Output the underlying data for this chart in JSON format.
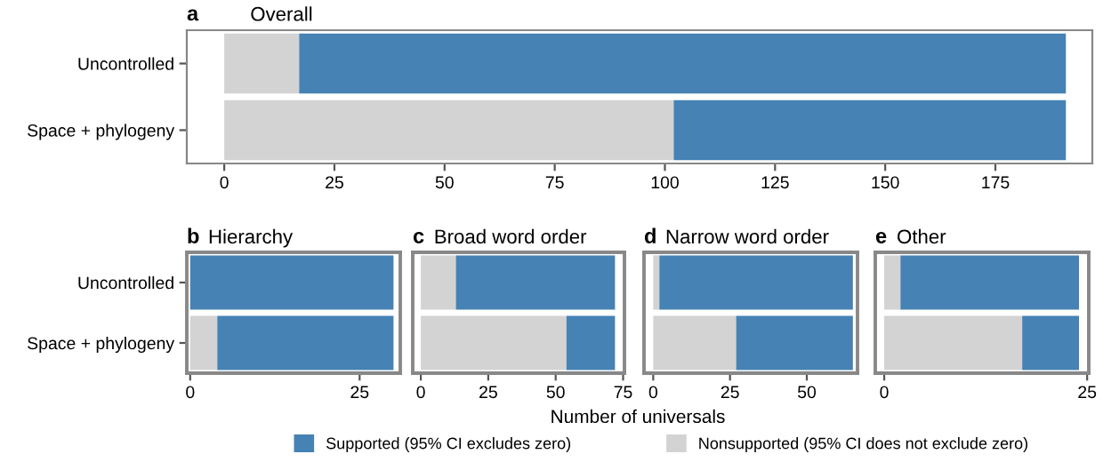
{
  "chart_data": [
    {
      "type": "bar",
      "orientation": "horizontal",
      "stacked": true,
      "title": "Overall",
      "annotations": [
        "a"
      ],
      "categories": [
        "Uncontrolled",
        "Space + phylogeny"
      ],
      "legend": "bottom",
      "series": [
        {
          "name": "Nonsupported (95% CI does not exclude zero)",
          "color": "#d3d3d3",
          "values": [
            17,
            102
          ]
        },
        {
          "name": "Supported (95% CI excludes zero)",
          "color": "#4682b4",
          "values": [
            174,
            89
          ]
        }
      ],
      "xlim": [
        -8.5,
        197
      ],
      "xticks": [
        0,
        25,
        50,
        75,
        100,
        125,
        150,
        175
      ]
    },
    {
      "type": "bar",
      "orientation": "horizontal",
      "stacked": true,
      "title": "Hierarchy",
      "annotations": [
        "b"
      ],
      "categories": [
        "Uncontrolled",
        "Space + phylogeny"
      ],
      "series": [
        {
          "color": "#d3d3d3",
          "values": [
            0,
            4
          ]
        },
        {
          "color": "#4682b4",
          "values": [
            30,
            26
          ]
        }
      ],
      "xlim": [
        -0.5,
        31
      ],
      "xticks": [
        0,
        25
      ]
    },
    {
      "type": "bar",
      "orientation": "horizontal",
      "stacked": true,
      "title": "Broad word order",
      "annotations": [
        "c"
      ],
      "categories": [
        null,
        null
      ],
      "tick_labels": "x",
      "xlabel": "Number of universals",
      "series": [
        {
          "color": "#d3d3d3",
          "values": [
            13,
            54
          ]
        },
        {
          "color": "#4682b4",
          "values": [
            59,
            18
          ]
        }
      ],
      "xlim": [
        -3,
        75.5
      ],
      "xticks": [
        0,
        25,
        50,
        75
      ]
    },
    {
      "type": "bar",
      "orientation": "horizontal",
      "stacked": true,
      "title": "Narrow word order",
      "annotations": [
        "d"
      ],
      "categories": [
        null,
        null
      ],
      "tick_labels": "x",
      "series": [
        {
          "color": "#d3d3d3",
          "values": [
            2,
            27
          ]
        },
        {
          "color": "#4682b4",
          "values": [
            63,
            38
          ]
        }
      ],
      "xlim": [
        -3,
        66.5
      ],
      "xticks": [
        0,
        25,
        50
      ]
    },
    {
      "type": "bar",
      "orientation": "horizontal",
      "stacked": true,
      "title": "Other",
      "annotations": [
        "e"
      ],
      "categories": [
        null,
        null
      ],
      "tick_labels": "x",
      "series": [
        {
          "color": "#d3d3d3",
          "values": [
            2,
            17
          ]
        },
        {
          "color": "#4682b4",
          "values": [
            22,
            7
          ]
        }
      ],
      "xlim": [
        -1.1,
        25.2
      ],
      "xticks": [
        0,
        25
      ]
    }
  ]
}
